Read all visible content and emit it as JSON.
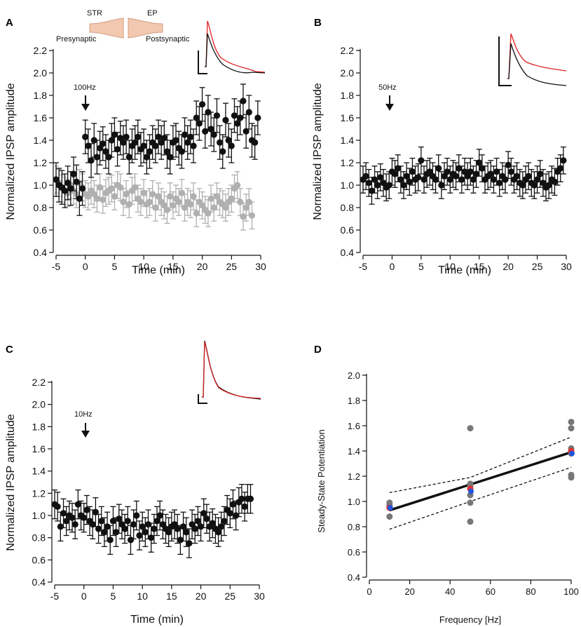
{
  "chart_data": [
    {
      "panel": "A",
      "type": "scatter",
      "xlabel": "Time (min)",
      "ylabel": "Normalized IPSP amplitude",
      "xlim": [
        -5,
        30
      ],
      "ylim": [
        0.4,
        2.2
      ],
      "xticks": [
        "-5",
        "0",
        "5",
        "10",
        "15",
        "20",
        "25",
        "30"
      ],
      "yticks": [
        "0.4",
        "0.6",
        "0.8",
        "1.0",
        "1.2",
        "1.4",
        "1.6",
        "1.8",
        "2.0",
        "2.2"
      ],
      "stim_label": "100Hz",
      "stim_time": 0,
      "schematic": {
        "left_region": "STR",
        "right_region": "EP",
        "left_label": "Presynaptic",
        "right_label": "Postsynaptic"
      },
      "series": [
        {
          "name": "gray",
          "color": "#b0b0b0",
          "x": [
            -5,
            -4.5,
            -4,
            -3.5,
            -3,
            -2.5,
            -2,
            -1.5,
            -1,
            -0.5,
            0,
            0.5,
            1,
            1.5,
            2,
            2.5,
            3,
            3.5,
            4,
            4.5,
            5,
            5.5,
            6,
            6.5,
            7,
            7.5,
            8,
            8.5,
            9,
            9.5,
            10,
            10.5,
            11,
            11.5,
            12,
            12.5,
            13,
            13.5,
            14,
            14.5,
            15,
            15.5,
            16,
            16.5,
            17,
            17.5,
            18,
            18.5,
            19,
            19.5,
            20,
            20.5,
            21,
            21.5,
            22,
            22.5,
            23,
            23.5,
            24,
            24.5,
            25,
            25.5,
            26,
            26.5,
            27,
            27.5,
            28,
            28.5
          ],
          "y": [
            1.05,
            1.02,
            0.97,
            0.95,
            0.93,
            1.0,
            0.95,
            0.92,
            1.02,
            0.98,
            0.92,
            0.9,
            0.95,
            0.92,
            0.88,
            0.98,
            0.87,
            0.93,
            0.95,
            0.97,
            0.9,
            1.0,
            0.98,
            0.85,
            0.92,
            0.83,
            0.95,
            0.98,
            0.88,
            0.85,
            0.93,
            0.83,
            0.85,
            0.92,
            0.8,
            0.9,
            0.85,
            0.82,
            0.78,
            0.9,
            0.82,
            0.88,
            0.85,
            0.93,
            0.8,
            0.85,
            0.83,
            0.9,
            0.75,
            0.85,
            0.82,
            0.78,
            0.75,
            0.88,
            0.8,
            0.9,
            0.85,
            0.83,
            0.8,
            0.85,
            0.88,
            0.97,
            1.0,
            0.85,
            0.72,
            0.8,
            0.85,
            0.73
          ],
          "err": 0.12
        },
        {
          "name": "black",
          "color": "#111111",
          "x": [
            -5,
            -4.5,
            -4,
            -3.5,
            -3,
            -2.5,
            -2,
            -1.5,
            -1,
            -0.5,
            0,
            0.5,
            1,
            1.5,
            2,
            2.5,
            3,
            3.5,
            4,
            4.5,
            5,
            5.5,
            6,
            6.5,
            7,
            7.5,
            8,
            8.5,
            9,
            9.5,
            10,
            10.5,
            11,
            11.5,
            12,
            12.5,
            13,
            13.5,
            14,
            14.5,
            15,
            15.5,
            16,
            16.5,
            17,
            17.5,
            18,
            18.5,
            19,
            19.5,
            20,
            20.5,
            21,
            21.5,
            22,
            22.5,
            23,
            23.5,
            24,
            24.5,
            25,
            25.5,
            26,
            26.5,
            27,
            27.5,
            28,
            28.5,
            29,
            29.5
          ],
          "y": [
            1.05,
            1.0,
            0.98,
            0.95,
            1.02,
            0.97,
            1.1,
            1.03,
            0.88,
            0.97,
            1.43,
            1.35,
            1.22,
            1.4,
            1.25,
            1.33,
            1.37,
            1.3,
            1.25,
            1.4,
            1.45,
            1.32,
            1.42,
            1.38,
            1.43,
            1.25,
            1.35,
            1.38,
            1.43,
            1.32,
            1.35,
            1.25,
            1.3,
            1.38,
            1.35,
            1.43,
            1.38,
            1.42,
            1.3,
            1.25,
            1.38,
            1.4,
            1.33,
            1.3,
            1.45,
            1.38,
            1.43,
            1.35,
            1.6,
            1.55,
            1.72,
            1.48,
            1.65,
            1.5,
            1.45,
            1.62,
            1.38,
            1.3,
            1.58,
            1.4,
            1.35,
            1.62,
            1.55,
            1.6,
            1.75,
            1.48,
            1.65,
            1.4,
            1.38,
            1.6
          ],
          "err": 0.15
        }
      ]
    },
    {
      "panel": "B",
      "type": "scatter",
      "xlabel": "Time (min)",
      "ylabel": "Normalized IPSP amplitude",
      "xlim": [
        -5,
        30
      ],
      "ylim": [
        0.4,
        2.2
      ],
      "xticks": [
        "-5",
        "0",
        "5",
        "10",
        "15",
        "20",
        "25",
        "30"
      ],
      "yticks": [
        "0.4",
        "0.6",
        "0.8",
        "1.0",
        "1.2",
        "1.4",
        "1.6",
        "1.8",
        "2.0",
        "2.2"
      ],
      "stim_label": "50Hz",
      "stim_time": -1,
      "series": [
        {
          "name": "black",
          "color": "#111111",
          "x": [
            -5,
            -4.5,
            -4,
            -3.5,
            -3,
            -2.5,
            -2,
            -1.5,
            -1,
            -0.5,
            0,
            0.5,
            1,
            1.5,
            2,
            2.5,
            3,
            3.5,
            4,
            4.5,
            5,
            5.5,
            6,
            6.5,
            7,
            7.5,
            8,
            8.5,
            9,
            9.5,
            10,
            10.5,
            11,
            11.5,
            12,
            12.5,
            13,
            13.5,
            14,
            14.5,
            15,
            15.5,
            16,
            16.5,
            17,
            17.5,
            18,
            18.5,
            19,
            19.5,
            20,
            20.5,
            21,
            21.5,
            22,
            22.5,
            23,
            23.5,
            24,
            24.5,
            25,
            25.5,
            26,
            26.5,
            27,
            27.5,
            28,
            28.5,
            29,
            29.5
          ],
          "y": [
            1.05,
            1.08,
            1.02,
            0.95,
            1.05,
            1.0,
            1.07,
            1.02,
            0.98,
            1.0,
            1.12,
            1.1,
            1.15,
            1.05,
            1.0,
            1.08,
            1.03,
            1.12,
            1.05,
            1.07,
            1.22,
            1.05,
            1.1,
            1.12,
            1.08,
            1.05,
            1.15,
            1.0,
            1.08,
            1.12,
            1.05,
            1.1,
            1.08,
            1.15,
            1.05,
            1.12,
            1.08,
            1.12,
            1.05,
            1.1,
            1.2,
            1.15,
            1.05,
            1.08,
            1.1,
            1.05,
            1.12,
            1.02,
            1.08,
            1.05,
            1.18,
            1.12,
            1.05,
            1.08,
            1.02,
            1.0,
            1.05,
            1.08,
            1.02,
            1.0,
            1.05,
            1.1,
            1.02,
            0.98,
            1.0,
            1.05,
            1.03,
            1.12,
            1.15,
            1.22
          ],
          "err": 0.12
        }
      ]
    },
    {
      "panel": "C",
      "type": "scatter",
      "xlabel": "Time (min)",
      "ylabel": "Normalized IPSP amplitude",
      "xlim": [
        -5,
        30
      ],
      "ylim": [
        0.4,
        2.2
      ],
      "xticks": [
        "-5",
        "0",
        "5",
        "10",
        "15",
        "20",
        "25",
        "30"
      ],
      "yticks": [
        "0.4",
        "0.6",
        "0.8",
        "1.0",
        "1.2",
        "1.4",
        "1.6",
        "1.8",
        "2.0",
        "2.2"
      ],
      "stim_label": "10Hz",
      "stim_time": 0,
      "series": [
        {
          "name": "black",
          "color": "#111111",
          "x": [
            -5,
            -4.5,
            -4,
            -3.5,
            -3,
            -2.5,
            -2,
            -1.5,
            -1,
            -0.5,
            0,
            0.5,
            1,
            1.5,
            2,
            2.5,
            3,
            3.5,
            4,
            4.5,
            5,
            5.5,
            6,
            6.5,
            7,
            7.5,
            8,
            8.5,
            9,
            9.5,
            10,
            10.5,
            11,
            11.5,
            12,
            12.5,
            13,
            13.5,
            14,
            14.5,
            15,
            15.5,
            16,
            16.5,
            17,
            17.5,
            18,
            18.5,
            19,
            19.5,
            20,
            20.5,
            21,
            21.5,
            22,
            22.5,
            23,
            23.5,
            24,
            24.5,
            25,
            25.5,
            26,
            26.5,
            27,
            27.5,
            28,
            28.5
          ],
          "y": [
            1.1,
            1.08,
            0.9,
            1.02,
            0.95,
            1.0,
            0.98,
            0.92,
            1.1,
            1.0,
            0.98,
            1.05,
            0.95,
            0.92,
            1.03,
            0.88,
            0.95,
            0.85,
            0.9,
            0.78,
            0.95,
            0.85,
            0.97,
            0.92,
            0.88,
            0.95,
            0.78,
            0.92,
            1.0,
            0.82,
            0.9,
            0.85,
            0.92,
            0.8,
            0.88,
            0.95,
            1.0,
            0.92,
            0.88,
            0.85,
            0.9,
            0.92,
            0.88,
            0.78,
            0.9,
            0.85,
            0.75,
            0.92,
            0.88,
            0.95,
            0.9,
            1.02,
            0.97,
            0.9,
            0.93,
            0.88,
            0.85,
            0.9,
            0.95,
            1.05,
            1.02,
            1.1,
            1.0,
            1.12,
            1.15,
            1.08,
            1.15,
            1.15
          ],
          "err": 0.13
        }
      ]
    },
    {
      "panel": "D",
      "type": "scatter",
      "xlabel": "Frequency [Hz]",
      "ylabel": "Steady-State Potentiation",
      "xlim": [
        0,
        100
      ],
      "ylim": [
        0.4,
        2.0
      ],
      "xticks": [
        "0",
        "20",
        "40",
        "60",
        "80",
        "100"
      ],
      "yticks": [
        "0.4",
        "0.6",
        "0.8",
        "1.0",
        "1.2",
        "1.4",
        "1.6",
        "1.8",
        "2.0"
      ],
      "points": {
        "color": "#777777",
        "x": [
          10,
          10,
          10,
          10,
          50,
          50,
          50,
          50,
          50,
          50,
          100,
          100,
          100,
          100,
          100,
          100
        ],
        "y": [
          0.88,
          0.95,
          0.97,
          0.99,
          0.84,
          0.99,
          1.05,
          1.12,
          1.14,
          1.58,
          1.19,
          1.21,
          1.38,
          1.42,
          1.58,
          1.63
        ]
      },
      "means_red": {
        "color": "#e53030",
        "x": [
          10,
          50,
          100
        ],
        "y": [
          0.95,
          1.1,
          1.4
        ]
      },
      "means_blue": {
        "color": "#2255dd",
        "x": [
          10,
          50,
          100
        ],
        "y": [
          0.95,
          1.08,
          1.38
        ]
      },
      "fit": {
        "x": [
          10,
          100
        ],
        "y": [
          0.93,
          1.39
        ]
      },
      "ci_upper": {
        "x": [
          10,
          50,
          100
        ],
        "y": [
          1.07,
          1.19,
          1.51
        ]
      },
      "ci_lower": {
        "x": [
          10,
          50,
          100
        ],
        "y": [
          0.78,
          1.0,
          1.27
        ]
      }
    }
  ],
  "panel_labels": [
    "A",
    "B",
    "C",
    "D"
  ]
}
